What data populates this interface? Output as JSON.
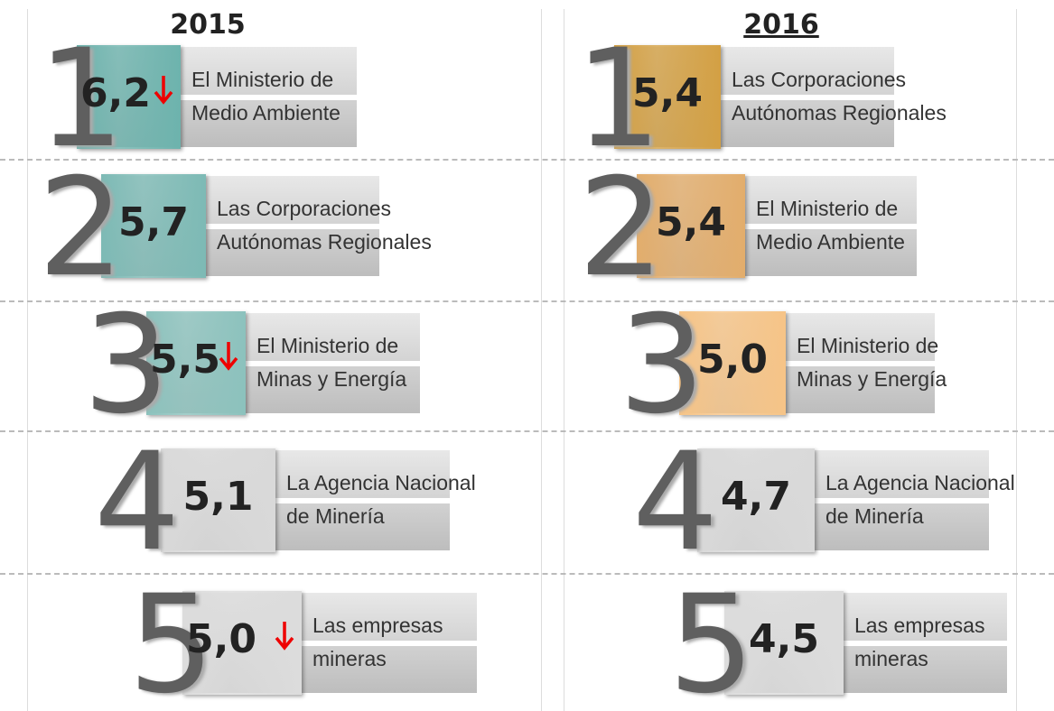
{
  "columns": [
    {
      "year": "2015",
      "underline": false,
      "items": [
        {
          "rank": "1",
          "score": "6,2",
          "down": true,
          "color": "#6db3ad",
          "label": [
            "El Ministerio de",
            "Medio Ambiente"
          ]
        },
        {
          "rank": "2",
          "score": "5,7",
          "down": false,
          "color": "#7dbab5",
          "label": [
            "Las Corporaciones",
            "Autónomas Regionales"
          ]
        },
        {
          "rank": "3",
          "score": "5,5",
          "down": true,
          "color": "#8cc2bd",
          "label": [
            "El Ministerio de",
            "Minas y Energía"
          ]
        },
        {
          "rank": "4",
          "score": "5,1",
          "down": false,
          "color": "#d9d9d9",
          "label": [
            "La Agencia Nacional",
            "de Minería"
          ]
        },
        {
          "rank": "5",
          "score": "5,0",
          "down": true,
          "color": "#dcdcdc",
          "label": [
            "Las empresas",
            "mineras"
          ]
        }
      ]
    },
    {
      "year": "2016",
      "underline": true,
      "items": [
        {
          "rank": "1",
          "score": "5,4",
          "down": false,
          "color": "#d3a044",
          "label": [
            "Las Corporaciones",
            "Autónomas Regionales"
          ]
        },
        {
          "rank": "2",
          "score": "5,4",
          "down": false,
          "color": "#e2ad6c",
          "label": [
            "El Ministerio de",
            "Medio Ambiente"
          ]
        },
        {
          "rank": "3",
          "score": "5,0",
          "down": false,
          "color": "#f6c487",
          "label": [
            "El Ministerio de",
            "Minas y Energía"
          ]
        },
        {
          "rank": "4",
          "score": "4,7",
          "down": false,
          "color": "#d9d9d9",
          "label": [
            "La Agencia Nacional",
            "de Minería"
          ]
        },
        {
          "rank": "5",
          "score": "4,5",
          "down": false,
          "color": "#dcdcdc",
          "label": [
            "Las empresas",
            "mineras"
          ]
        }
      ]
    }
  ]
}
